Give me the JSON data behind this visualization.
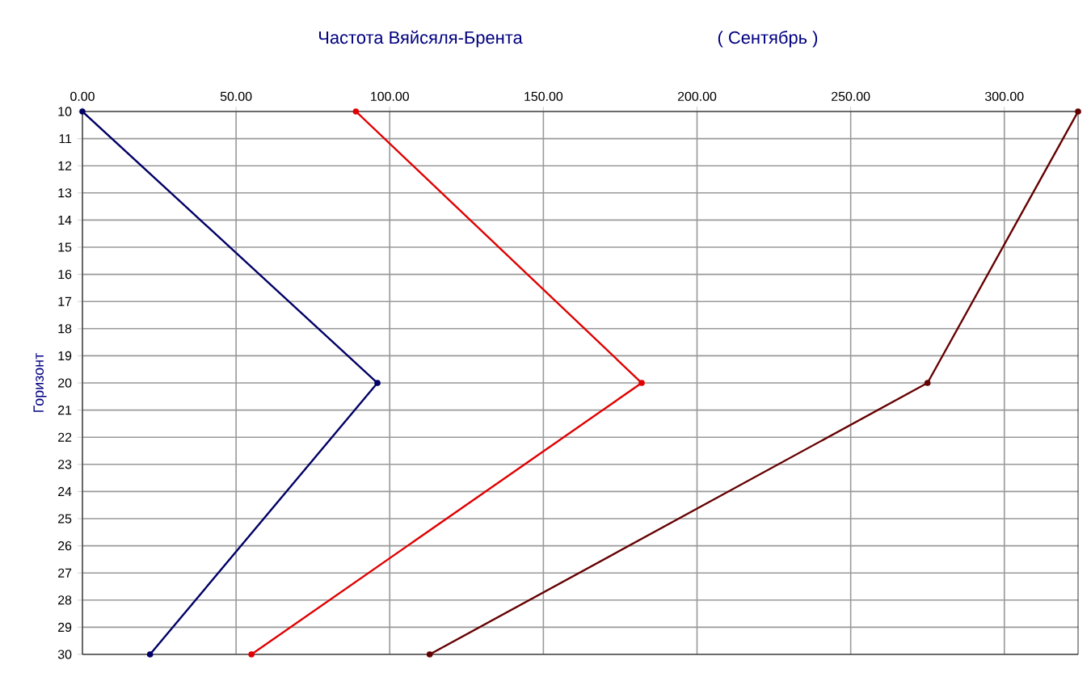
{
  "chart_data": {
    "type": "line",
    "title": "Частота Вяйсяля-Брента",
    "subtitle": "( Сентябрь )",
    "ylabel": "Горизонт",
    "x": [
      10,
      20,
      30
    ],
    "series": [
      {
        "color": "#000066",
        "values": [
          0,
          96,
          22
        ]
      },
      {
        "color": "#e00000",
        "values": [
          89,
          182,
          55
        ]
      },
      {
        "color": "#660000",
        "values": [
          324,
          275,
          113
        ]
      }
    ],
    "orientation": "horizontal",
    "xlim": [
      0,
      324
    ],
    "xticks": [
      {
        "value": 0,
        "label": "0.00"
      },
      {
        "value": 50,
        "label": "50.00"
      },
      {
        "value": 100,
        "label": "100.00"
      },
      {
        "value": 150,
        "label": "150.00"
      },
      {
        "value": 200,
        "label": "200.00"
      },
      {
        "value": 250,
        "label": "250.00"
      },
      {
        "value": 300,
        "label": "300.00"
      }
    ],
    "ylim": [
      30,
      10
    ],
    "yticks": [
      10,
      11,
      12,
      13,
      14,
      15,
      16,
      17,
      18,
      19,
      20,
      21,
      22,
      23,
      24,
      25,
      26,
      27,
      28,
      29,
      30
    ],
    "grid": true,
    "marker": "circle",
    "line_style": "solid"
  }
}
